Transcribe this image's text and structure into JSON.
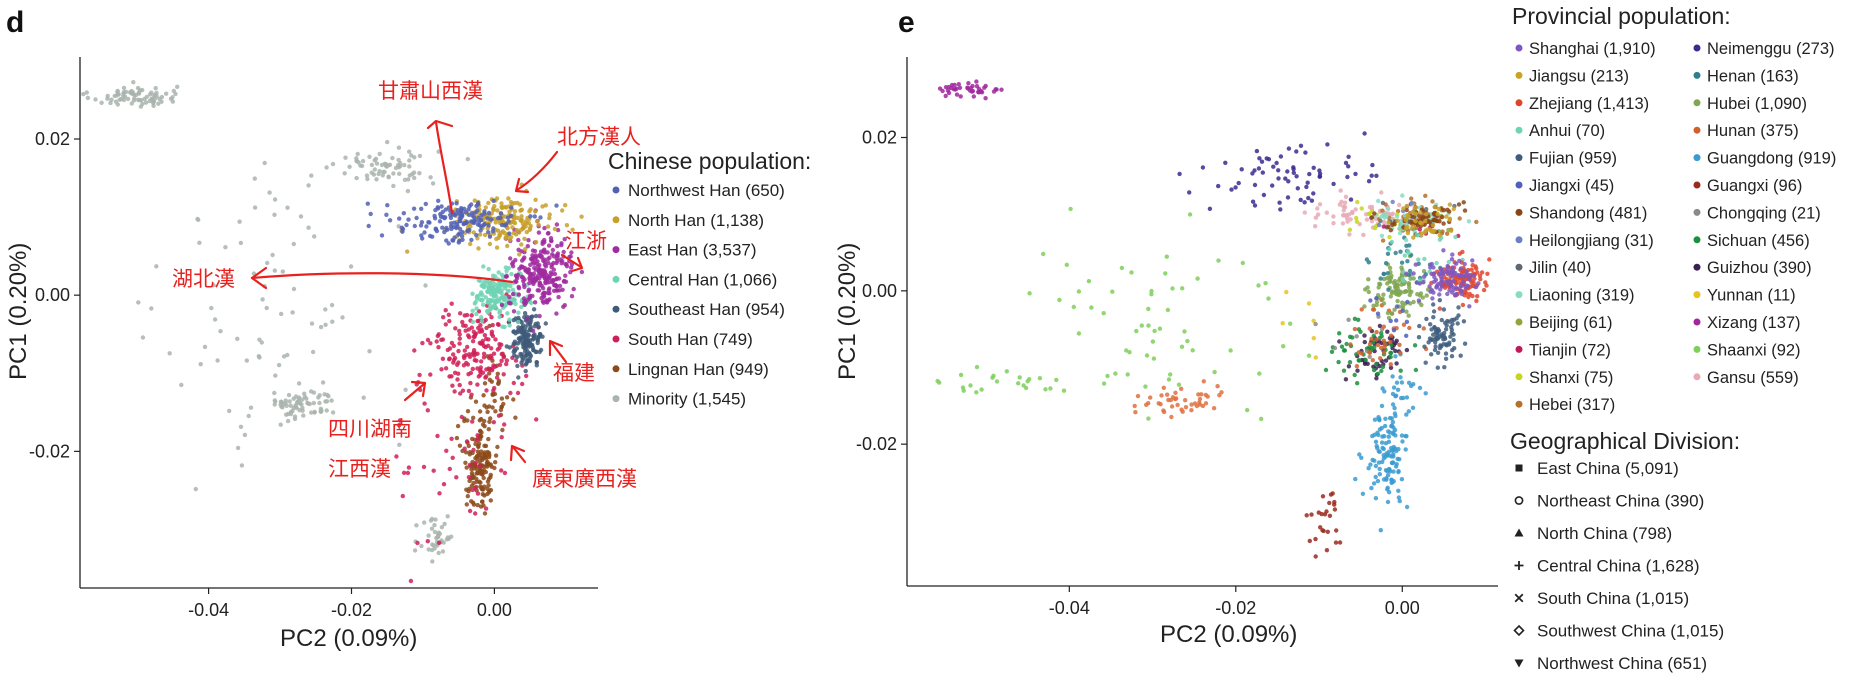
{
  "chart_data": [
    {
      "type": "scatter",
      "panel_label": "d",
      "xlabel": "PC2 (0.09%)",
      "ylabel": "PC1 (0.20%)",
      "xlim": [
        -0.058,
        0.0145
      ],
      "ylim": [
        -0.0375,
        0.0305
      ],
      "xticks": [
        "-0.04",
        "-0.02",
        "0.00"
      ],
      "xtick_values": [
        -0.04,
        -0.02,
        0.0
      ],
      "yticks": [
        "0.02",
        "0.00",
        "-0.02"
      ],
      "ytick_values": [
        0.02,
        0.0,
        -0.02
      ],
      "grid": false,
      "legend_title": "Chinese population:",
      "legend_position": "right",
      "series": [
        {
          "name": "Northwest Han (650)",
          "color": "#5160b4",
          "clusters": [
            {
              "x": -0.0055,
              "y": 0.0095,
              "sx": 0.0045,
              "sy": 0.0014,
              "n": 160
            }
          ]
        },
        {
          "name": "North Han (1,138)",
          "color": "#c7a02c",
          "clusters": [
            {
              "x": 0.0015,
              "y": 0.0095,
              "sx": 0.0035,
              "sy": 0.0014,
              "n": 180
            }
          ]
        },
        {
          "name": "East Han (3,537)",
          "color": "#a02aa0",
          "clusters": [
            {
              "x": 0.0065,
              "y": 0.003,
              "sx": 0.0022,
              "sy": 0.0025,
              "n": 260
            }
          ]
        },
        {
          "name": "Central Han (1,066)",
          "color": "#6ed3b4",
          "clusters": [
            {
              "x": 0.0005,
              "y": 0.0,
              "sx": 0.0016,
              "sy": 0.0015,
              "n": 180
            }
          ]
        },
        {
          "name": "Southeast Han (954)",
          "color": "#3e5a79",
          "clusters": [
            {
              "x": 0.0045,
              "y": -0.0055,
              "sx": 0.0012,
              "sy": 0.0018,
              "n": 150
            }
          ]
        },
        {
          "name": "South Han (749)",
          "color": "#d01f57",
          "clusters": [
            {
              "x": -0.0025,
              "y": -0.007,
              "sx": 0.003,
              "sy": 0.0028,
              "n": 170
            },
            {
              "x": -0.0055,
              "y": -0.018,
              "sx": 0.004,
              "sy": 0.0075,
              "n": 60
            }
          ]
        },
        {
          "name": "Lingnan Han (949)",
          "color": "#8c4a1a",
          "clusters": [
            {
              "x": -0.002,
              "y": -0.0215,
              "sx": 0.0012,
              "sy": 0.003,
              "n": 150
            },
            {
              "x": 0.0,
              "y": -0.013,
              "sx": 0.001,
              "sy": 0.003,
              "n": 40
            }
          ]
        },
        {
          "name": "Minority (1,545)",
          "color": "#a9b4ae",
          "clusters": [
            {
              "x": -0.0505,
              "y": 0.0255,
              "sx": 0.003,
              "sy": 0.0007,
              "n": 80
            },
            {
              "x": -0.015,
              "y": 0.0165,
              "sx": 0.0035,
              "sy": 0.0012,
              "n": 70
            },
            {
              "x": -0.027,
              "y": -0.014,
              "sx": 0.0025,
              "sy": 0.001,
              "n": 70
            },
            {
              "x": -0.03,
              "y": -0.002,
              "sx": 0.008,
              "sy": 0.01,
              "n": 80
            },
            {
              "x": -0.008,
              "y": -0.031,
              "sx": 0.0012,
              "sy": 0.002,
              "n": 40
            }
          ]
        }
      ],
      "annotations": [
        {
          "text": "甘肅山西漢",
          "color": "#e8211e"
        },
        {
          "text": "北方漢人",
          "color": "#e8211e"
        },
        {
          "text": "江浙",
          "color": "#e8211e"
        },
        {
          "text": "湖北漢",
          "color": "#e8211e"
        },
        {
          "text": "福建",
          "color": "#e8211e"
        },
        {
          "text": "四川湖南",
          "color": "#e8211e"
        },
        {
          "text": "江西漢",
          "color": "#e8211e"
        },
        {
          "text": "廣東廣西漢",
          "color": "#e8211e"
        }
      ]
    },
    {
      "type": "scatter",
      "panel_label": "e",
      "xlabel": "PC2 (0.09%)",
      "ylabel": "PC1 (0.20%)",
      "xlim": [
        -0.0595,
        0.0115
      ],
      "ylim": [
        -0.0385,
        0.0305
      ],
      "xticks": [
        "-0.04",
        "-0.02",
        "0.00"
      ],
      "xtick_values": [
        -0.04,
        -0.02,
        0.0
      ],
      "yticks": [
        "0.02",
        "0.00",
        "-0.02"
      ],
      "ytick_values": [
        0.02,
        0.0,
        -0.02
      ],
      "grid": false,
      "legend_title": "Provincial population:",
      "legend_position": "right",
      "series": [
        {
          "name": "Shanghai (1,910)",
          "color": "#7e57c2",
          "clusters": [
            {
              "x": 0.0055,
              "y": 0.0015,
              "sx": 0.0018,
              "sy": 0.0015,
              "n": 90
            }
          ]
        },
        {
          "name": "Jiangsu (213)",
          "color": "#c9a227",
          "clusters": [
            {
              "x": 0.003,
              "y": 0.009,
              "sx": 0.0022,
              "sy": 0.0012,
              "n": 40
            }
          ]
        },
        {
          "name": "Zhejiang (1,413)",
          "color": "#e0452b",
          "clusters": [
            {
              "x": 0.007,
              "y": 0.0015,
              "sx": 0.0015,
              "sy": 0.0013,
              "n": 110
            }
          ]
        },
        {
          "name": "Anhui (70)",
          "color": "#6fd3b5",
          "clusters": [
            {
              "x": 0.002,
              "y": 0.005,
              "sx": 0.002,
              "sy": 0.002,
              "n": 20
            }
          ]
        },
        {
          "name": "Fujian (959)",
          "color": "#3f5d7d",
          "clusters": [
            {
              "x": 0.0045,
              "y": -0.0055,
              "sx": 0.0012,
              "sy": 0.002,
              "n": 80
            }
          ]
        },
        {
          "name": "Jiangxi (45)",
          "color": "#4f5fbf",
          "clusters": [
            {
              "x": 0.0,
              "y": -0.003,
              "sx": 0.002,
              "sy": 0.002,
              "n": 12
            }
          ]
        },
        {
          "name": "Shandong (481)",
          "color": "#8b4513",
          "clusters": [
            {
              "x": 0.003,
              "y": 0.0095,
              "sx": 0.002,
              "sy": 0.001,
              "n": 60
            }
          ]
        },
        {
          "name": "Heilongjiang (31)",
          "color": "#6a7fc4",
          "clusters": [
            {
              "x": 0.001,
              "y": 0.01,
              "sx": 0.002,
              "sy": 0.001,
              "n": 10
            }
          ]
        },
        {
          "name": "Jilin (40)",
          "color": "#5f6770",
          "clusters": [
            {
              "x": 0.0015,
              "y": 0.0095,
              "sx": 0.002,
              "sy": 0.001,
              "n": 12
            }
          ]
        },
        {
          "name": "Liaoning (319)",
          "color": "#86dcc5",
          "clusters": [
            {
              "x": 0.0015,
              "y": 0.0095,
              "sx": 0.0025,
              "sy": 0.0012,
              "n": 40
            }
          ]
        },
        {
          "name": "Beijing (61)",
          "color": "#8fa63a",
          "clusters": [
            {
              "x": 0.002,
              "y": 0.009,
              "sx": 0.002,
              "sy": 0.0012,
              "n": 15
            }
          ]
        },
        {
          "name": "Tianjin (72)",
          "color": "#c2185b",
          "clusters": [
            {
              "x": 0.002,
              "y": 0.009,
              "sx": 0.002,
              "sy": 0.0012,
              "n": 15
            }
          ]
        },
        {
          "name": "Shanxi (75)",
          "color": "#c6d61f",
          "clusters": [
            {
              "x": -0.004,
              "y": 0.009,
              "sx": 0.0025,
              "sy": 0.0015,
              "n": 15
            }
          ]
        },
        {
          "name": "Hebei (317)",
          "color": "#b5702a",
          "clusters": [
            {
              "x": 0.001,
              "y": 0.0095,
              "sx": 0.0025,
              "sy": 0.0012,
              "n": 40
            }
          ]
        },
        {
          "name": "Neimenggu (273)",
          "color": "#3b2a8f",
          "clusters": [
            {
              "x": -0.014,
              "y": 0.015,
              "sx": 0.005,
              "sy": 0.002,
              "n": 70
            }
          ]
        },
        {
          "name": "Henan (163)",
          "color": "#2f7f8f",
          "clusters": [
            {
              "x": 0.0,
              "y": 0.004,
              "sx": 0.002,
              "sy": 0.002,
              "n": 30
            }
          ]
        },
        {
          "name": "Hubei (1,090)",
          "color": "#7fa650",
          "clusters": [
            {
              "x": 0.0,
              "y": 0.0,
              "sx": 0.0018,
              "sy": 0.0016,
              "n": 100
            }
          ]
        },
        {
          "name": "Hunan (375)",
          "color": "#d2602b",
          "clusters": [
            {
              "x": -0.003,
              "y": -0.006,
              "sx": 0.0025,
              "sy": 0.0025,
              "n": 40
            }
          ]
        },
        {
          "name": "Guangdong (919)",
          "color": "#3a9bd0",
          "clusters": [
            {
              "x": -0.002,
              "y": -0.0215,
              "sx": 0.0012,
              "sy": 0.003,
              "n": 110
            },
            {
              "x": 0.0,
              "y": -0.014,
              "sx": 0.0012,
              "sy": 0.003,
              "n": 30
            }
          ]
        },
        {
          "name": "Guangxi (96)",
          "color": "#9a2a1e",
          "clusters": [
            {
              "x": -0.009,
              "y": -0.03,
              "sx": 0.001,
              "sy": 0.002,
              "n": 25
            }
          ]
        },
        {
          "name": "Chongqing (21)",
          "color": "#8a8a8a",
          "clusters": [
            {
              "x": -0.005,
              "y": -0.007,
              "sx": 0.002,
              "sy": 0.002,
              "n": 8
            }
          ]
        },
        {
          "name": "Sichuan (456)",
          "color": "#1a8f3c",
          "clusters": [
            {
              "x": -0.005,
              "y": -0.008,
              "sx": 0.0025,
              "sy": 0.002,
              "n": 50
            }
          ]
        },
        {
          "name": "Guizhou (390)",
          "color": "#3a1f4f",
          "clusters": [
            {
              "x": -0.003,
              "y": -0.008,
              "sx": 0.002,
              "sy": 0.002,
              "n": 50
            }
          ]
        },
        {
          "name": "Yunnan (11)",
          "color": "#e8c31a",
          "clusters": [
            {
              "x": -0.01,
              "y": -0.005,
              "sx": 0.003,
              "sy": 0.003,
              "n": 6
            }
          ]
        },
        {
          "name": "Xizang (137)",
          "color": "#a0279e",
          "clusters": [
            {
              "x": -0.052,
              "y": 0.026,
              "sx": 0.002,
              "sy": 0.0006,
              "n": 40
            }
          ]
        },
        {
          "name": "Shaanxi (92)",
          "color": "#7fcf5c",
          "clusters": [
            {
              "x": -0.03,
              "y": -0.004,
              "sx": 0.008,
              "sy": 0.008,
              "n": 60
            },
            {
              "x": -0.048,
              "y": -0.012,
              "sx": 0.006,
              "sy": 0.001,
              "n": 25
            }
          ]
        },
        {
          "name": "Gansu (559)",
          "color": "#e8a9b5",
          "clusters": [
            {
              "x": -0.005,
              "y": 0.01,
              "sx": 0.004,
              "sy": 0.0012,
              "n": 60
            }
          ]
        }
      ],
      "extra_cluster": {
        "color": "#e07040",
        "x": -0.027,
        "y": -0.0145,
        "sx": 0.0025,
        "sy": 0.0009,
        "n": 45
      },
      "shape_legend_title": "Geographical Division:",
      "shape_legend": [
        {
          "name": "East China (5,091)",
          "symbol": "square"
        },
        {
          "name": "Northeast China (390)",
          "symbol": "circle"
        },
        {
          "name": "North China (798)",
          "symbol": "triangle"
        },
        {
          "name": "Central China (1,628)",
          "symbol": "plus"
        },
        {
          "name": "South China (1,015)",
          "symbol": "cross"
        },
        {
          "name": "Southwest China (1,015)",
          "symbol": "diamond"
        },
        {
          "name": "Northwest China (651)",
          "symbol": "triangle-down"
        }
      ]
    }
  ]
}
